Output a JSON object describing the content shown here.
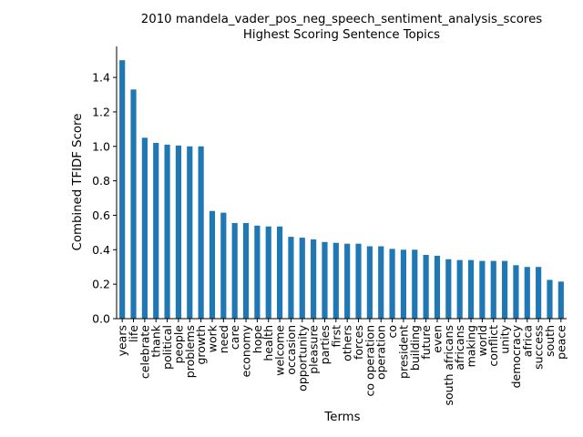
{
  "chart_data": {
    "type": "bar",
    "title": "2010 mandela_vader_pos_neg_speech_sentiment_analysis_scores",
    "subtitle": "Highest Scoring Sentence Topics",
    "xlabel": "Terms",
    "ylabel": "Combined TFIDF Score",
    "ylim": [
      0,
      1.58
    ],
    "yticks": [
      "0.0",
      "0.2",
      "0.4",
      "0.6",
      "0.8",
      "1.0",
      "1.2",
      "1.4"
    ],
    "bar_color": "#1f77b4",
    "grid": false,
    "categories": [
      "years",
      "life",
      "celebrate",
      "thank",
      "political",
      "people",
      "problems",
      "growth",
      "work",
      "need",
      "care",
      "economy",
      "hope",
      "health",
      "welcome",
      "occasion",
      "opportunity",
      "pleasure",
      "parties",
      "first",
      "others",
      "forces",
      "co operation",
      "operation",
      "co",
      "president",
      "building",
      "future",
      "even",
      "south africans",
      "africans",
      "making",
      "world",
      "conflict",
      "unity",
      "democracy",
      "africa",
      "success",
      "south",
      "peace"
    ],
    "values": [
      1.5,
      1.33,
      1.05,
      1.02,
      1.01,
      1.005,
      1.0,
      1.0,
      0.625,
      0.615,
      0.555,
      0.555,
      0.54,
      0.535,
      0.535,
      0.475,
      0.47,
      0.46,
      0.445,
      0.44,
      0.435,
      0.435,
      0.42,
      0.42,
      0.405,
      0.4,
      0.4,
      0.37,
      0.365,
      0.345,
      0.34,
      0.34,
      0.335,
      0.335,
      0.335,
      0.31,
      0.3,
      0.3,
      0.225,
      0.215
    ]
  }
}
